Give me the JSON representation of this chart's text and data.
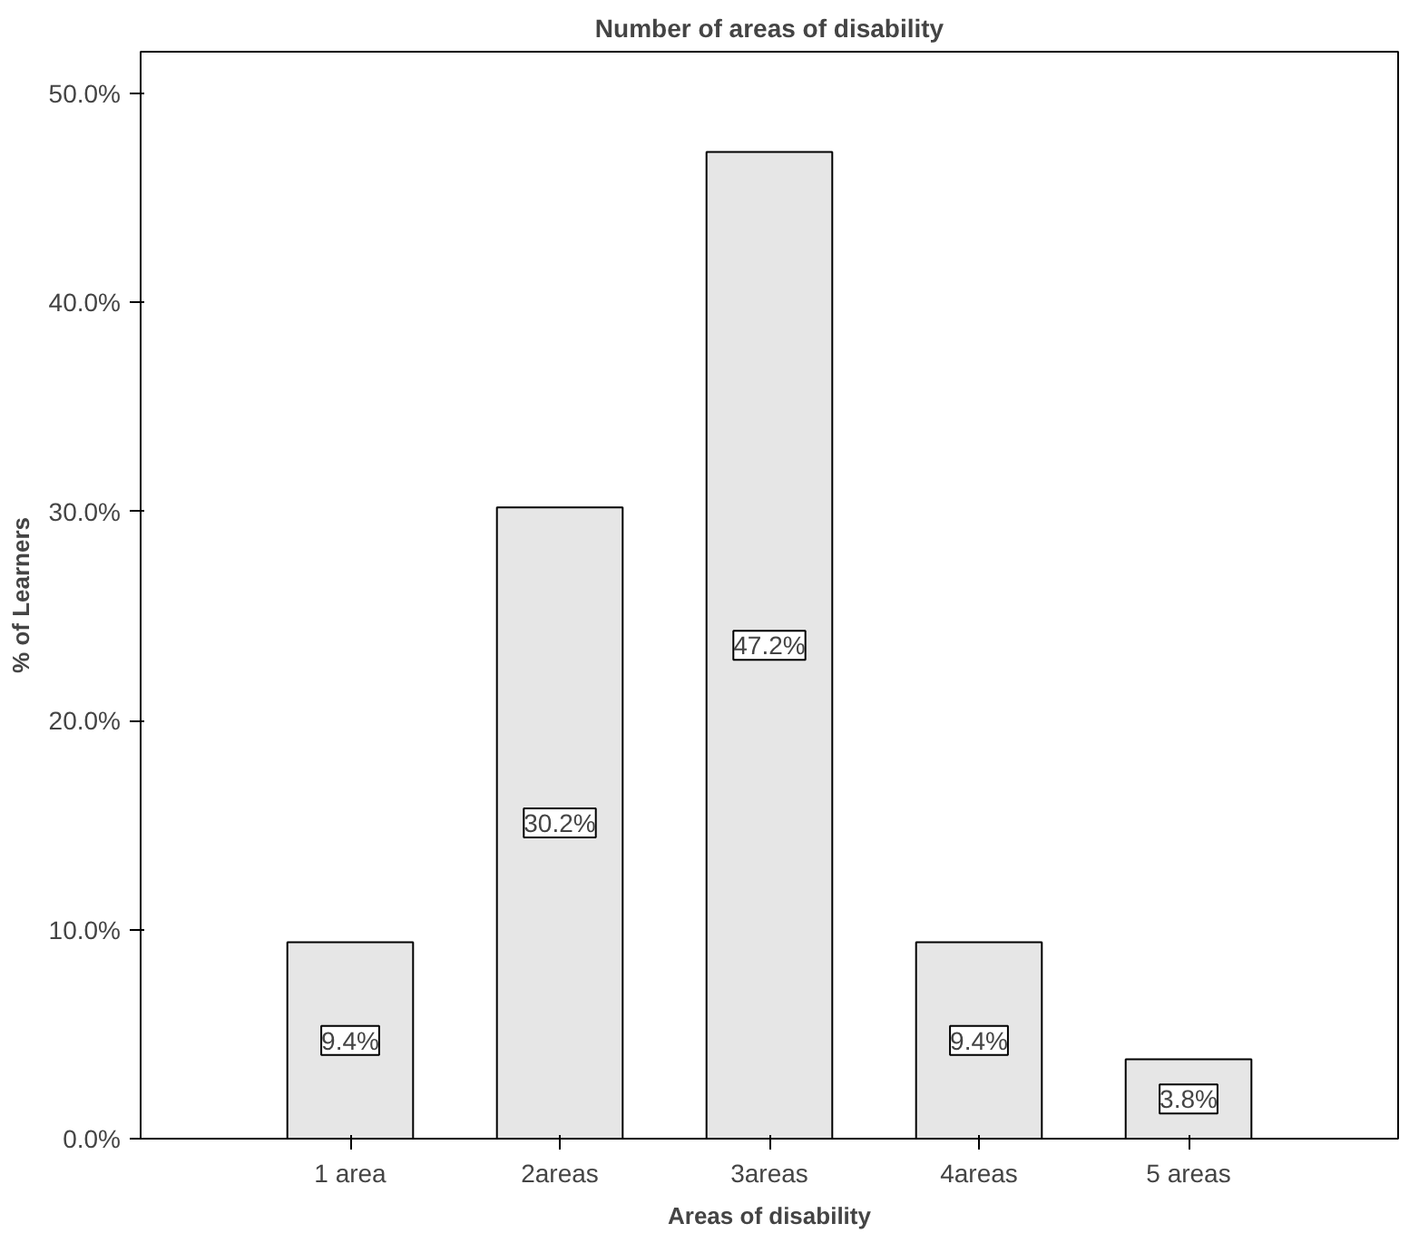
{
  "chart_data": {
    "type": "bar",
    "title": "Number of areas of disability",
    "xlabel": "Areas of disability",
    "ylabel": "% of Learners",
    "categories": [
      "1 area",
      "2areas",
      "3areas",
      "4areas",
      "5 areas"
    ],
    "values": [
      9.4,
      30.2,
      47.2,
      9.4,
      3.8
    ],
    "value_labels": [
      "9.4%",
      "30.2%",
      "47.2%",
      "9.4%",
      "3.8%"
    ],
    "color": "#e6e6e6",
    "ylim": [
      0,
      52
    ],
    "yticks": [
      {
        "value": 0,
        "label": "0.0%"
      },
      {
        "value": 10,
        "label": "10.0%"
      },
      {
        "value": 20,
        "label": "20.0%"
      },
      {
        "value": 30,
        "label": "30.0%"
      },
      {
        "value": 40,
        "label": "40.0%"
      },
      {
        "value": 50,
        "label": "50.0%"
      }
    ],
    "grid": false
  }
}
